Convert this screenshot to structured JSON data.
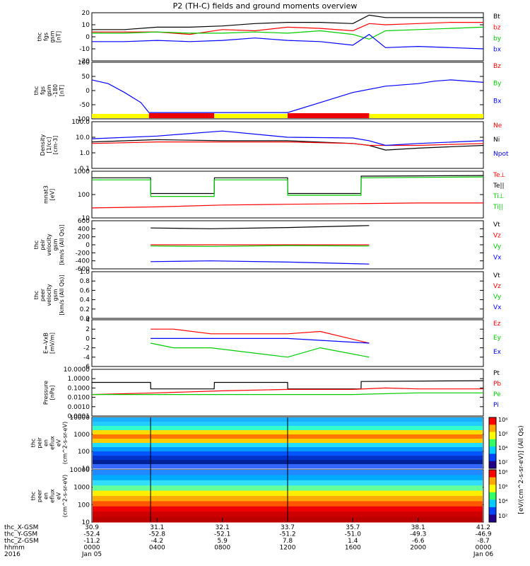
{
  "title": "P2 (TH-C) fields and ground moments overview",
  "colors": {
    "black": "#000000",
    "red": "#ff0000",
    "green": "#00cc00",
    "blue": "#0000ff",
    "yellow": "#ffff00",
    "bar_red": "#ee0000"
  },
  "panels": [
    {
      "id": "fgs",
      "ylabel": [
        "thc",
        "fgs",
        "gsm",
        "[nT]"
      ],
      "ticks": [
        "20",
        "10",
        "0",
        "-10",
        "-20"
      ],
      "legend": [
        {
          "t": "Bt",
          "c": "black"
        },
        {
          "t": "bz",
          "c": "red"
        },
        {
          "t": "by",
          "c": "green"
        },
        {
          "t": "bx",
          "c": "blue"
        }
      ]
    },
    {
      "id": "fgs_avg",
      "ylabel": [
        "thc",
        "fgs",
        "gsm",
        "-180",
        "[nT]"
      ],
      "ticks": [
        "100",
        "50",
        "0",
        "-50",
        "-100"
      ],
      "legend": [
        {
          "t": "Bz",
          "c": "red"
        },
        {
          "t": "By",
          "c": "green"
        },
        {
          "t": "Bx",
          "c": "blue"
        }
      ]
    },
    {
      "id": "density",
      "ylabel": [
        "Density",
        "[1/cc]",
        "[cm-3]"
      ],
      "ticks": [
        "100.0",
        "10.0",
        "1.0",
        "0.1"
      ],
      "legend": [
        {
          "t": "Ne",
          "c": "red"
        },
        {
          "t": "Ni",
          "c": "black"
        },
        {
          "t": "Npot",
          "c": "blue"
        }
      ]
    },
    {
      "id": "temp",
      "ylabel": [
        "mnat3",
        "[eV]"
      ],
      "ticks": [
        "1000",
        "100",
        "10"
      ],
      "legend": [
        {
          "t": "Te⊥",
          "c": "red"
        },
        {
          "t": "Te||",
          "c": "black"
        },
        {
          "t": "Ti⊥",
          "c": "green"
        },
        {
          "t": "Ti||",
          "c": "green"
        }
      ]
    },
    {
      "id": "peir_vel",
      "ylabel": [
        "thc",
        "peir",
        "velocity",
        "gsm",
        "[km/s (All Qs)]"
      ],
      "ticks": [
        "600",
        "400",
        "200",
        "0",
        "-200",
        "-400",
        "-600"
      ],
      "legend": [
        {
          "t": "Vt",
          "c": "black"
        },
        {
          "t": "Vz",
          "c": "red"
        },
        {
          "t": "Vy",
          "c": "green"
        },
        {
          "t": "Vx",
          "c": "blue"
        }
      ]
    },
    {
      "id": "peer_vel",
      "ylabel": [
        "thc",
        "peer",
        "velocity",
        "gsm",
        "[km/s (All Qs)]"
      ],
      "ticks": [
        "1.0",
        "0.8",
        "0.6",
        "0.4",
        "0.2",
        "0.0"
      ],
      "legend": [
        {
          "t": "Vt",
          "c": "black"
        },
        {
          "t": "Vz",
          "c": "red"
        },
        {
          "t": "Vy",
          "c": "green"
        },
        {
          "t": "Vx",
          "c": "blue"
        }
      ]
    },
    {
      "id": "efield",
      "ylabel": [
        "E=-VxB",
        "[mV/m]"
      ],
      "ticks": [
        "4",
        "2",
        "0",
        "-2",
        "-4",
        "-6"
      ],
      "legend": [
        {
          "t": "Ez",
          "c": "red"
        },
        {
          "t": "Ey",
          "c": "green"
        },
        {
          "t": "Ex",
          "c": "blue"
        }
      ]
    },
    {
      "id": "pressure",
      "ylabel": [
        "Pressure",
        "[nPa]"
      ],
      "ticks": [
        "10.0000",
        "1.0000",
        "0.1000",
        "0.0100",
        "0.0010",
        "0.0001"
      ],
      "legend": [
        {
          "t": "Pt",
          "c": "black"
        },
        {
          "t": "Pb",
          "c": "red"
        },
        {
          "t": "Pe",
          "c": "green"
        },
        {
          "t": "Pi",
          "c": "blue"
        }
      ]
    },
    {
      "id": "peir_spec",
      "ylabel": [
        "thc",
        "peir",
        "en",
        "eflux",
        "eV",
        "(cm^2-s-sr-eV)"
      ],
      "ticks": [
        "10000",
        "1000",
        "100",
        "10"
      ],
      "legend": []
    },
    {
      "id": "peer_spec",
      "ylabel": [
        "thc",
        "peer",
        "en",
        "eflux",
        "eV",
        "(cm^2-s-sr-eV)"
      ],
      "ticks": [
        "10000",
        "1000",
        "100",
        "10"
      ],
      "legend": []
    }
  ],
  "colorbar": {
    "label": "[eV/(cm^2-s-sr-eV)] (All Qs)",
    "ticks": [
      "10⁸",
      "10⁶",
      "10⁴",
      "10²",
      "10⁸",
      "10⁶",
      "10⁴",
      "10²"
    ]
  },
  "xaxis": {
    "row_labels": [
      "thc_X-GSM",
      "thc_Y-GSM",
      "thc_Z-GSM",
      "hhmm",
      "2016"
    ],
    "columns": [
      [
        "30.9",
        "-52.4",
        "-11.2",
        "0000",
        "Jan 05"
      ],
      [
        "31.1",
        "-52.8",
        "-4.2",
        "0400",
        ""
      ],
      [
        "32.1",
        "-52.1",
        "5.9",
        "0800",
        ""
      ],
      [
        "33.7",
        "-51.2",
        "7.8",
        "1200",
        ""
      ],
      [
        "35.7",
        "-51.0",
        "1.4",
        "1600",
        ""
      ],
      [
        "38.1",
        "-49.3",
        "-6.6",
        "2000",
        ""
      ],
      [
        "41.2",
        "-46.9",
        "-8.7",
        "0000",
        "Jan 06"
      ]
    ]
  },
  "chart_data": {
    "type": "line",
    "title": "P2 (TH-C) fields and ground moments overview",
    "x": {
      "unit": "hhmm",
      "ticks": [
        "0000",
        "0400",
        "0800",
        "1200",
        "1600",
        "2000",
        "0000"
      ],
      "start": "2016-01-05 00:00",
      "end": "2016-01-06 00:00"
    },
    "state_bar": [
      {
        "from": "0000",
        "to": "0330",
        "color": "yellow"
      },
      {
        "from": "0330",
        "to": "0730",
        "color": "red"
      },
      {
        "from": "0730",
        "to": "1200",
        "color": "yellow"
      },
      {
        "from": "1200",
        "to": "1700",
        "color": "red"
      },
      {
        "from": "1700",
        "to": "2400",
        "color": "yellow"
      }
    ],
    "panels": [
      {
        "id": "fgs",
        "ylim": [
          -20,
          20
        ],
        "series": [
          {
            "name": "Bt",
            "hours": [
              0,
              2,
              4,
              6,
              8,
              10,
              12,
              14,
              16,
              17,
              18,
              20,
              22,
              24
            ],
            "values": [
              6,
              6,
              8,
              8,
              9,
              11,
              12,
              12,
              11,
              18,
              16,
              16,
              16,
              16
            ]
          },
          {
            "name": "bz",
            "hours": [
              0,
              2,
              4,
              6,
              8,
              10,
              12,
              14,
              16,
              17,
              18,
              20,
              22,
              24
            ],
            "values": [
              4,
              4,
              4,
              2,
              6,
              5,
              8,
              7,
              5,
              11,
              10,
              11,
              12,
              12
            ]
          },
          {
            "name": "by",
            "hours": [
              0,
              2,
              4,
              6,
              8,
              10,
              12,
              14,
              16,
              17,
              18,
              20,
              22,
              24
            ],
            "values": [
              3,
              3,
              4,
              3,
              3,
              4,
              3,
              5,
              2,
              -2,
              5,
              6,
              7,
              8
            ]
          },
          {
            "name": "bx",
            "hours": [
              0,
              2,
              4,
              6,
              8,
              10,
              12,
              14,
              16,
              17,
              18,
              20,
              22,
              24
            ],
            "values": [
              -4,
              -4,
              -3,
              -4,
              -3,
              -1,
              -3,
              -4,
              -7,
              2,
              -9,
              -8,
              -9,
              -10
            ]
          }
        ]
      },
      {
        "id": "fgs_avg",
        "ylim": [
          -125,
          100
        ],
        "series": [
          {
            "name": "Bx",
            "hours": [
              0,
              1,
              2,
              3,
              3.5,
              8,
              12,
              14,
              16,
              18,
              20,
              21,
              22,
              24
            ],
            "values": [
              30,
              15,
              -20,
              -60,
              -100,
              -100,
              -100,
              -60,
              -20,
              5,
              15,
              25,
              30,
              20
            ]
          }
        ]
      },
      {
        "id": "density",
        "ylim": [
          0.1,
          100
        ],
        "log": true,
        "series": [
          {
            "name": "Ni",
            "hours": [
              0,
              4,
              8,
              12,
              16,
              17,
              18,
              20,
              24
            ],
            "values": [
              5,
              7,
              6,
              6,
              4,
              3,
              1.5,
              2,
              3
            ]
          },
          {
            "name": "Ne",
            "hours": [
              0,
              4,
              8,
              12,
              16,
              17,
              18,
              20,
              24
            ],
            "values": [
              4,
              5,
              5,
              5,
              4,
              3,
              3,
              3,
              4
            ]
          },
          {
            "name": "Npot",
            "hours": [
              0,
              4,
              8,
              12,
              16,
              17,
              18,
              20,
              24
            ],
            "values": [
              8,
              12,
              25,
              10,
              9,
              6,
              3,
              4,
              6
            ]
          }
        ]
      },
      {
        "id": "temp",
        "ylim": [
          3,
          2000
        ],
        "log": true,
        "series": [
          {
            "name": "Te||",
            "hours": [
              0,
              3.6,
              3.61,
              7.5,
              7.51,
              12,
              12.01,
              16.5,
              16.51,
              24
            ],
            "values": [
              800,
              800,
              90,
              90,
              800,
              800,
              90,
              90,
              1000,
              1100
            ]
          },
          {
            "name": "Ti||",
            "hours": [
              0,
              3.6,
              3.61,
              7.5,
              7.51,
              12,
              12.01,
              16.5,
              16.51,
              24
            ],
            "values": [
              600,
              600,
              60,
              60,
              600,
              600,
              70,
              70,
              800,
              900
            ]
          },
          {
            "name": "Te⊥",
            "hours": [
              0,
              4,
              8,
              12,
              16,
              20,
              24
            ],
            "values": [
              12,
              14,
              18,
              20,
              22,
              24,
              24
            ]
          }
        ]
      },
      {
        "id": "peir_vel",
        "ylim": [
          -600,
          600
        ],
        "series": [
          {
            "name": "Vt",
            "hours": [
              3.6,
              7.3,
              12,
              17
            ],
            "values": [
              420,
              400,
              430,
              480
            ]
          },
          {
            "name": "Vz",
            "hours": [
              3.6,
              7.3,
              12,
              17
            ],
            "values": [
              0,
              0,
              0,
              0
            ]
          },
          {
            "name": "Vy",
            "hours": [
              3.6,
              7.3,
              12,
              17
            ],
            "values": [
              -30,
              -40,
              -20,
              -30
            ]
          },
          {
            "name": "Vx",
            "hours": [
              3.6,
              7.3,
              12,
              17
            ],
            "values": [
              -420,
              -400,
              -430,
              -480
            ]
          }
        ]
      },
      {
        "id": "peer_vel",
        "ylim": [
          0,
          1
        ],
        "series": []
      },
      {
        "id": "efield",
        "ylim": [
          -6,
          4
        ],
        "series": [
          {
            "name": "Ez",
            "hours": [
              3.6,
              5,
              7.3,
              12,
              14,
              17
            ],
            "values": [
              2,
              2,
              1,
              1,
              1.5,
              -1
            ]
          },
          {
            "name": "Ey",
            "hours": [
              3.6,
              5,
              7.3,
              12,
              14,
              17
            ],
            "values": [
              -1,
              -2,
              -2,
              -4,
              -2,
              -4
            ]
          },
          {
            "name": "Ex",
            "hours": [
              3.6,
              7.3,
              12,
              17
            ],
            "values": [
              0,
              0,
              0,
              -1
            ]
          }
        ]
      },
      {
        "id": "pressure",
        "ylim": [
          0.0001,
          10
        ],
        "log": true,
        "series": [
          {
            "name": "Pt",
            "hours": [
              0,
              3.6,
              3.61,
              7.5,
              7.51,
              12,
              12.01,
              16.5,
              16.51,
              24
            ],
            "values": [
              0.4,
              0.4,
              0.08,
              0.08,
              0.4,
              0.4,
              0.08,
              0.08,
              0.5,
              0.6
            ]
          },
          {
            "name": "Pb",
            "hours": [
              0,
              4,
              8,
              12,
              16,
              18,
              20,
              24
            ],
            "values": [
              0.02,
              0.03,
              0.05,
              0.07,
              0.07,
              0.1,
              0.08,
              0.08
            ]
          },
          {
            "name": "Pe",
            "hours": [
              0,
              4,
              8,
              12,
              16,
              20,
              24
            ],
            "values": [
              0.02,
              0.02,
              0.02,
              0.02,
              0.02,
              0.03,
              0.03
            ]
          }
        ]
      }
    ]
  }
}
